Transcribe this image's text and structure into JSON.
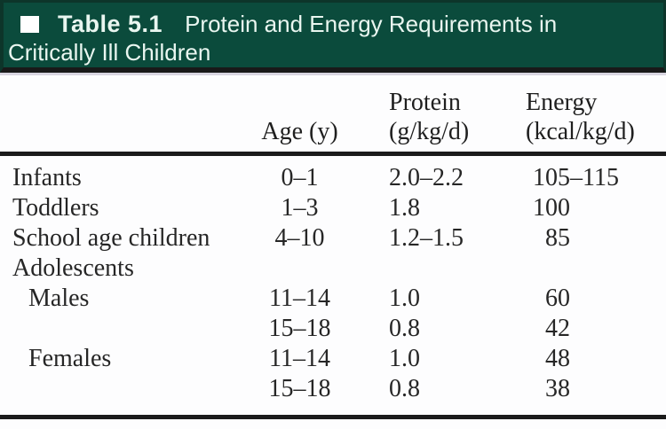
{
  "caption": {
    "bullet_icon": "square-bullet",
    "label": "Table 5.1",
    "title_line1": "Protein and Energy Requirements in",
    "title_line2": "Critically Ill Children"
  },
  "columns": {
    "category": "",
    "age": "Age (y)",
    "protein_line1": "Protein",
    "protein_line2": "(g/kg/d)",
    "energy_line1": "Energy",
    "energy_line2": "(kcal/kg/d)"
  },
  "rows": [
    {
      "category": "Infants",
      "age": "0–1",
      "protein": "2.0–2.2",
      "energy_main": "105",
      "energy_range": "–115"
    },
    {
      "category": "Toddlers",
      "age": "1–3",
      "protein": "1.8",
      "energy_main": "100",
      "energy_range": ""
    },
    {
      "category": "School age children",
      "age": "4–10",
      "protein": "1.2–1.5",
      "energy_main": "85",
      "energy_range": ""
    },
    {
      "category": "Adolescents",
      "age": "",
      "protein": "",
      "energy_main": "",
      "energy_range": ""
    },
    {
      "category": "Males",
      "age": "11–14",
      "protein": "1.0",
      "energy_main": "60",
      "energy_range": ""
    },
    {
      "category": "",
      "age": "15–18",
      "protein": "0.8",
      "energy_main": "42",
      "energy_range": ""
    },
    {
      "category": "Females",
      "age": "11–14",
      "protein": "1.0",
      "energy_main": "48",
      "energy_range": ""
    },
    {
      "category": "",
      "age": "15–18",
      "protein": "0.8",
      "energy_main": "38",
      "energy_range": ""
    }
  ],
  "colors": {
    "caption_bg": "#0b4b3c",
    "caption_border": "#0d352a",
    "caption_text": "#e9f6f0",
    "black_strip": "#191919",
    "shadow_strip": "#d8d5e0",
    "rule": "#1b1b1b",
    "body_text": "#262626"
  }
}
